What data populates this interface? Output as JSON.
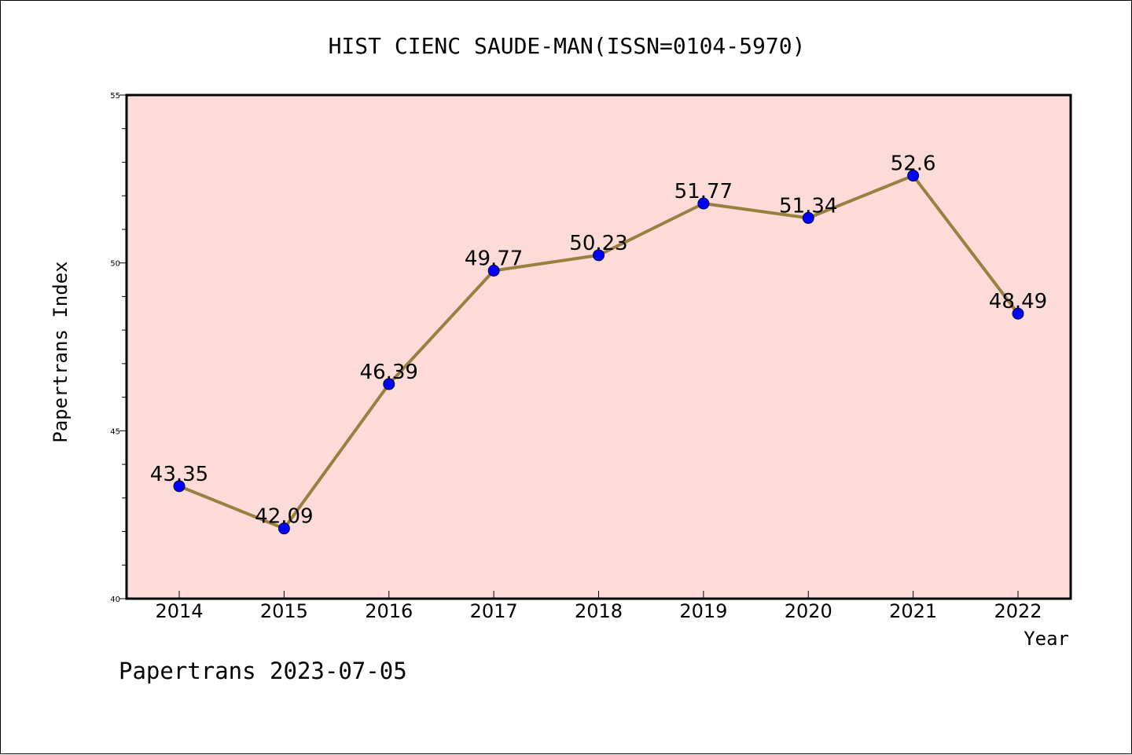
{
  "chart_data": {
    "type": "line",
    "title": "HIST CIENC SAUDE-MAN(ISSN=0104-5970)",
    "xlabel": "Year",
    "ylabel": "Papertrans Index",
    "categories": [
      "2014",
      "2015",
      "2016",
      "2017",
      "2018",
      "2019",
      "2020",
      "2021",
      "2022"
    ],
    "series": [
      {
        "values": [
          43.35,
          42.09,
          46.39,
          49.77,
          50.23,
          51.77,
          51.34,
          52.6,
          48.49
        ],
        "data_labels": [
          "43.35",
          "42.09",
          "46.39",
          "49.77",
          "50.23",
          "51.77",
          "51.34",
          "52.6",
          "48.49"
        ]
      }
    ],
    "ylim": [
      40,
      55
    ],
    "yticks": [
      "40",
      "45",
      "50",
      "55"
    ],
    "grid": false,
    "plot_background": "#fddbd8",
    "line_color": "#9a8040",
    "marker_color": "#0000ff",
    "footer": "Papertrans 2023-07-05"
  }
}
